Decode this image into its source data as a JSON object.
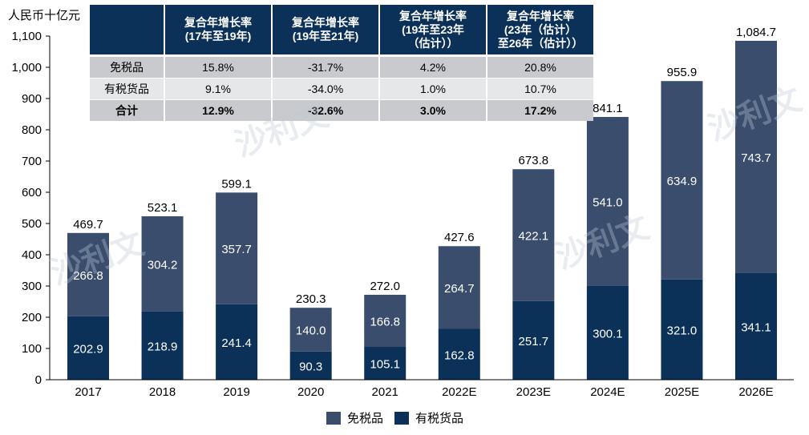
{
  "chart_data": {
    "type": "bar",
    "stacked": true,
    "title": "",
    "ylabel": "人民币十亿元",
    "xlabel": "",
    "ylim": [
      0,
      1100
    ],
    "yticks": [
      0,
      100,
      200,
      300,
      400,
      500,
      600,
      700,
      800,
      900,
      1000,
      1100
    ],
    "ytick_labels": [
      "0",
      "100",
      "200",
      "300",
      "400",
      "500",
      "600",
      "700",
      "800",
      "900",
      "1,000",
      "1,100"
    ],
    "grid": false,
    "categories": [
      "2017",
      "2018",
      "2019",
      "2020",
      "2021",
      "2022E",
      "2023E",
      "2024E",
      "2025E",
      "2026E"
    ],
    "series": [
      {
        "name": "有税货品",
        "color": "#0b3159",
        "values": [
          202.9,
          218.9,
          241.4,
          90.3,
          105.1,
          162.8,
          251.7,
          300.1,
          321.0,
          341.1
        ],
        "labels": [
          "202.9",
          "218.9",
          "241.4",
          "90.3",
          "105.1",
          "162.8",
          "251.7",
          "300.1",
          "321.0",
          "341.1"
        ]
      },
      {
        "name": "免税品",
        "color": "#3a4d6d",
        "values": [
          266.8,
          304.2,
          357.7,
          140.0,
          166.8,
          264.7,
          422.1,
          541.0,
          634.9,
          743.7
        ],
        "labels": [
          "266.8",
          "304.2",
          "357.7",
          "140.0",
          "166.8",
          "264.7",
          "422.1",
          "541.0",
          "634.9",
          "743.7"
        ]
      }
    ],
    "totals": [
      469.7,
      523.1,
      599.1,
      230.3,
      272.0,
      427.6,
      673.8,
      841.1,
      955.9,
      1084.7
    ],
    "total_labels": [
      "469.7",
      "523.1",
      "599.1",
      "230.3",
      "272.0",
      "427.6",
      "673.8",
      "841.1",
      "955.9",
      "1,084.7"
    ],
    "legend": {
      "placement": "bottom",
      "entries": [
        "免税品",
        "有税货品"
      ]
    }
  },
  "cagr_table": {
    "headers": [
      "",
      "复合年增长率\n(17年至19年)",
      "复合年增长率\n(19年至21年)",
      "复合年增长率\n(19年至23年\n（估计））",
      "复合年增长率\n(23年（估计）\n至26年（估计））"
    ],
    "rows": [
      [
        "免税品",
        "15.8%",
        "-31.7%",
        "4.2%",
        "20.8%"
      ],
      [
        "有税货品",
        "9.1%",
        "-34.0%",
        "1.0%",
        "10.7%"
      ],
      [
        "合计",
        "12.9%",
        "-32.6%",
        "3.0%",
        "17.2%"
      ]
    ]
  },
  "watermark": "沙利文"
}
